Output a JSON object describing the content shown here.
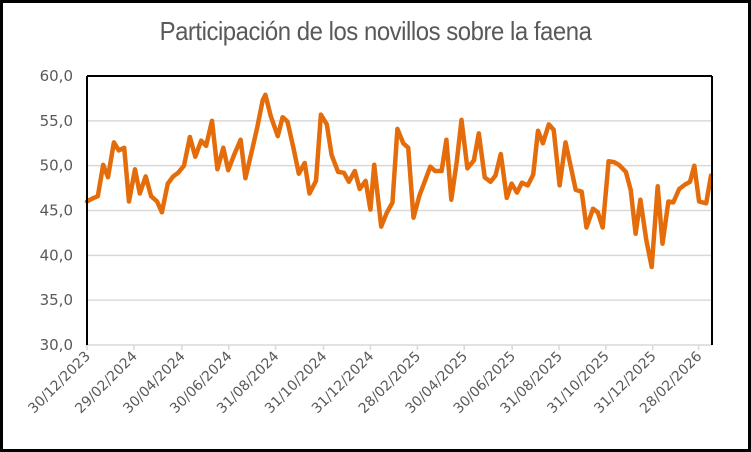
{
  "chart_data": {
    "type": "line",
    "title": "Participación de los novillos sobre la faena",
    "xlabel": "",
    "ylabel": "",
    "ylim": [
      30,
      60
    ],
    "y_ticks": [
      "30,0",
      "35,0",
      "40,0",
      "45,0",
      "50,0",
      "55,0",
      "60,0"
    ],
    "y_tick_values": [
      30,
      35,
      40,
      45,
      50,
      55,
      60
    ],
    "x_tick_labels": [
      "30/12/2023",
      "29/02/2024",
      "30/04/2024",
      "30/06/2024",
      "31/08/2024",
      "31/10/2024",
      "31/12/2024",
      "28/02/2025",
      "30/04/2025",
      "30/06/2025",
      "31/08/2025",
      "31/10/2025",
      "31/12/2025",
      "28/02/2026"
    ],
    "x_tick_index": [
      0,
      8.7,
      17.6,
      26.3,
      35,
      43.9,
      52.6,
      61.3,
      70,
      78.9,
      87.6,
      96.3,
      105,
      113.5
    ],
    "x_range": [
      0,
      115.8
    ],
    "grid": true,
    "legend": "none",
    "series": [
      {
        "name": "Participación de los novillos",
        "color": "#E46C0A",
        "x_index": [
          0,
          0.9,
          2.0,
          3.0,
          3.9,
          5.0,
          5.9,
          6.9,
          7.8,
          8.9,
          9.8,
          10.9,
          11.9,
          13.0,
          13.9,
          15.0,
          16.0,
          16.9,
          18.0,
          19.1,
          20.1,
          21.2,
          22.1,
          23.2,
          24.2,
          25.3,
          26.2,
          27.3,
          28.5,
          29.4,
          30.7,
          31.6,
          32.6,
          33.1,
          34.1,
          35.4,
          36.3,
          37.2,
          38.3,
          39.3,
          40.4,
          41.3,
          42.5,
          43.4,
          44.5,
          45.4,
          46.6,
          47.7,
          48.6,
          49.7,
          50.6,
          51.7,
          52.6,
          53.3,
          54.6,
          55.6,
          56.7,
          57.6,
          58.7,
          59.6,
          60.6,
          61.7,
          62.6,
          63.7,
          64.6,
          65.8,
          66.7,
          67.6,
          68.6,
          69.5,
          70.6,
          71.8,
          72.7,
          73.8,
          74.9,
          75.8,
          76.8,
          77.9,
          78.8,
          79.8,
          80.7,
          81.8,
          82.8,
          83.7,
          84.6,
          85.7,
          86.6,
          87.7,
          88.8,
          89.7,
          90.7,
          91.8,
          92.7,
          93.9,
          94.8,
          95.7,
          96.8,
          97.8,
          98.7,
          100.0,
          100.9,
          101.8,
          102.7,
          103.8,
          104.8,
          105.9,
          106.8,
          107.9,
          108.8,
          109.9,
          111.0,
          111.9,
          112.7,
          113.6,
          114.9,
          115.8
        ],
        "values": [
          46.0,
          46.3,
          46.6,
          50.1,
          48.7,
          52.6,
          51.7,
          52.0,
          46.0,
          49.6,
          46.9,
          48.8,
          46.6,
          46.0,
          44.8,
          48.0,
          48.8,
          49.2,
          50.0,
          53.2,
          51.0,
          52.8,
          52.2,
          55.0,
          49.6,
          52.0,
          49.5,
          51.2,
          52.9,
          48.6,
          51.9,
          54.3,
          57.3,
          57.9,
          55.5,
          53.3,
          55.4,
          54.9,
          52.0,
          49.1,
          50.3,
          46.9,
          48.3,
          55.7,
          54.6,
          51.2,
          49.3,
          49.2,
          48.2,
          49.4,
          47.4,
          48.3,
          45.1,
          50.1,
          43.2,
          44.7,
          45.9,
          54.1,
          52.5,
          52.0,
          44.2,
          46.7,
          48.1,
          49.9,
          49.4,
          49.4,
          52.9,
          46.2,
          50.4,
          55.1,
          49.7,
          50.6,
          53.6,
          48.7,
          48.2,
          48.9,
          51.3,
          46.4,
          48.0,
          47.0,
          48.1,
          47.8,
          49.0,
          53.9,
          52.5,
          54.6,
          54.0,
          47.8,
          52.6,
          50.1,
          47.3,
          47.1,
          43.1,
          45.2,
          44.8,
          43.1,
          50.5,
          50.4,
          50.1,
          49.3,
          47.3,
          42.4,
          46.2,
          41.7,
          38.7,
          47.7,
          41.3,
          46.0,
          45.9,
          47.4,
          47.9,
          48.2,
          50.0,
          46.0,
          45.8,
          48.9
        ]
      }
    ]
  }
}
